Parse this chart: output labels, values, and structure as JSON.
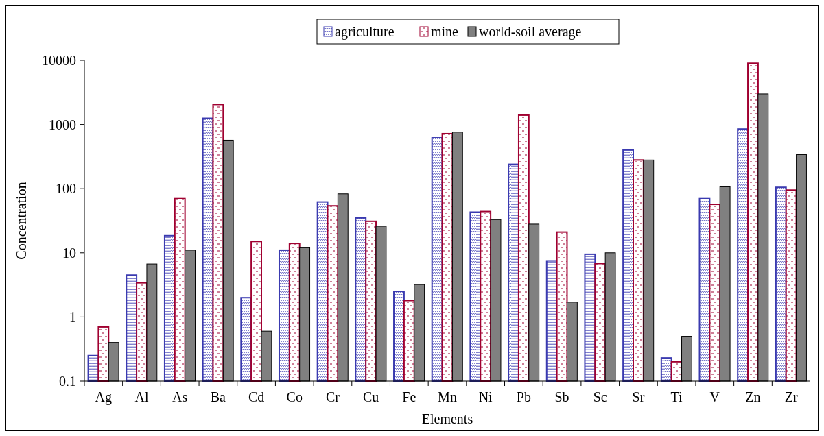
{
  "chart_data": {
    "type": "bar",
    "xlabel": "Elements",
    "ylabel": "Concentration",
    "categories": [
      "Ag",
      "Al",
      "As",
      "Ba",
      "Cd",
      "Co",
      "Cr",
      "Cu",
      "Fe",
      "Mn",
      "Ni",
      "Pb",
      "Sb",
      "Sc",
      "Sr",
      "Ti",
      "V",
      "Zn",
      "Zr"
    ],
    "series": [
      {
        "name": "agriculture",
        "color": "#3a3ab0",
        "values": [
          0.25,
          4.5,
          18.5,
          1250,
          2,
          11,
          62,
          35,
          2.5,
          620,
          43,
          240,
          7.5,
          9.5,
          400,
          0.23,
          70,
          850,
          105
        ]
      },
      {
        "name": "mine",
        "color": "#a00030",
        "values": [
          0.7,
          3.4,
          70,
          2050,
          15,
          14,
          54,
          31,
          1.8,
          720,
          44,
          1400,
          21,
          6.8,
          280,
          0.2,
          57,
          9000,
          95
        ]
      },
      {
        "name": "world-soil average",
        "color": "#808080",
        "values": [
          0.4,
          6.7,
          11,
          570,
          0.6,
          12,
          83,
          26,
          3.2,
          760,
          33,
          28,
          1.7,
          10,
          280,
          0.5,
          107,
          3000,
          340
        ]
      }
    ],
    "log": "y",
    "ylim": [
      0.1,
      10000
    ],
    "yticks": [
      0.1,
      1,
      10,
      100,
      1000,
      10000
    ],
    "legend": "top",
    "grid": false
  }
}
